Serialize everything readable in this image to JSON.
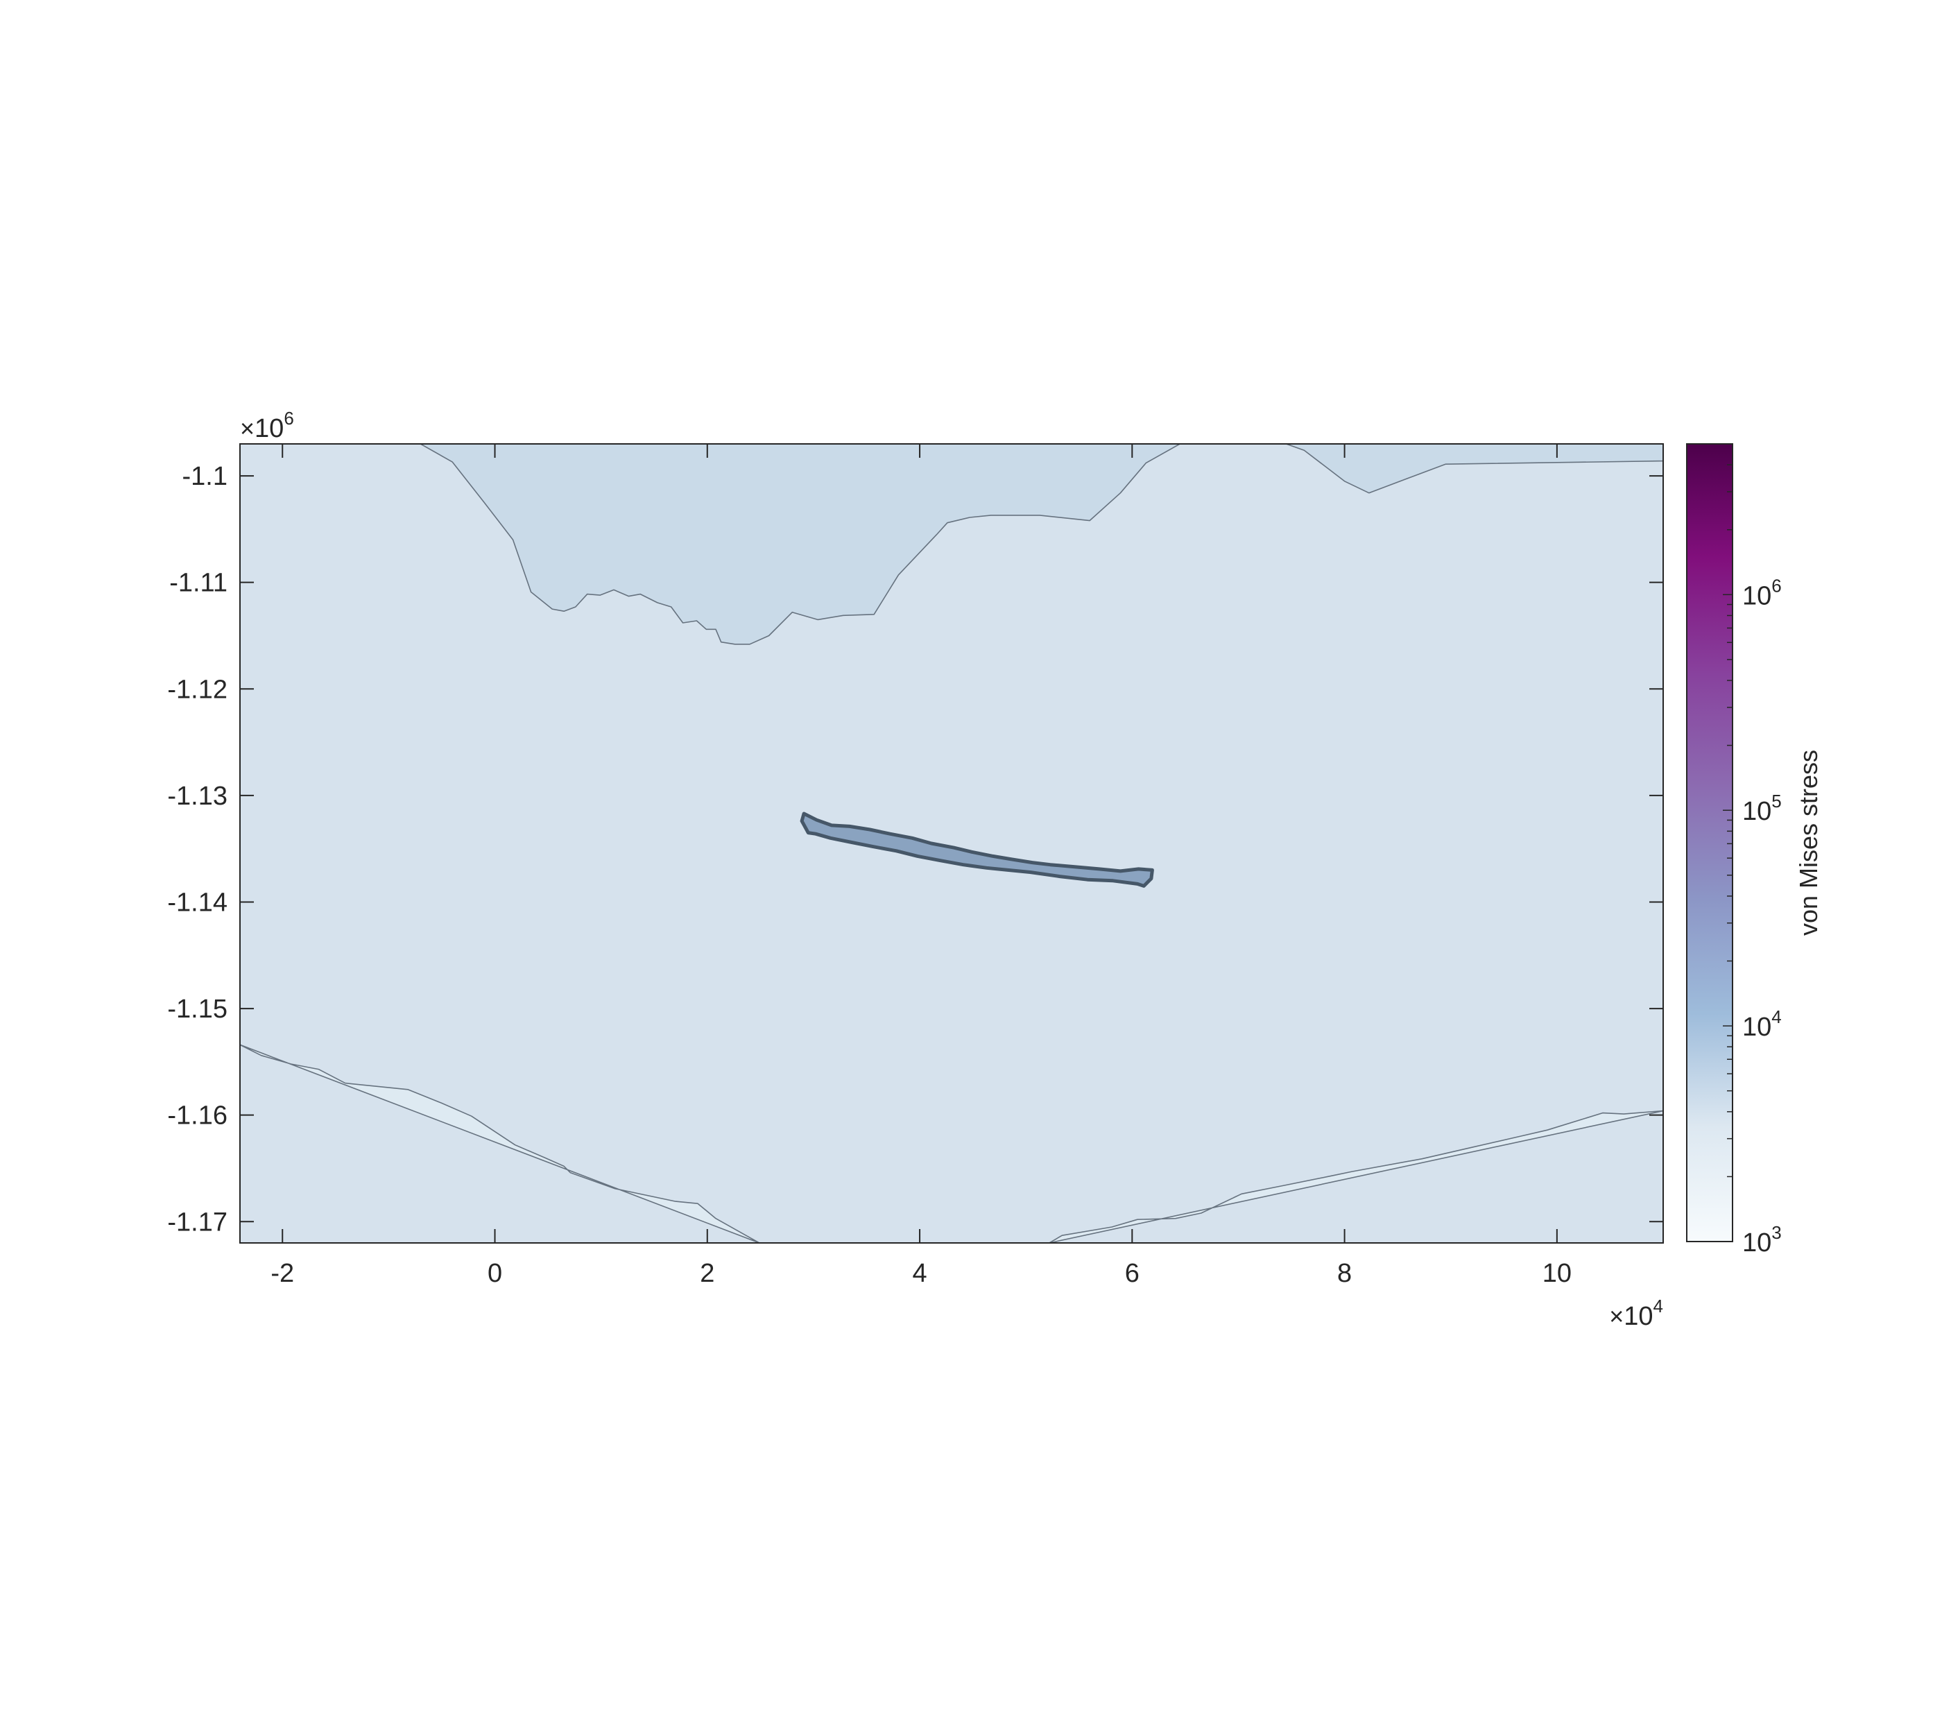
{
  "chart_data": {
    "type": "contour",
    "title": "",
    "xlabel": "",
    "ylabel": "",
    "xlim": [
      -24000,
      110000
    ],
    "ylim": [
      -1172000,
      -1097000
    ],
    "x_ticks": [
      {
        "value": -20000,
        "label": "-2"
      },
      {
        "value": 0,
        "label": "0"
      },
      {
        "value": 20000,
        "label": "2"
      },
      {
        "value": 40000,
        "label": "4"
      },
      {
        "value": 60000,
        "label": "6"
      },
      {
        "value": 80000,
        "label": "8"
      },
      {
        "value": 100000,
        "label": "10"
      }
    ],
    "y_ticks": [
      {
        "value": -1100000,
        "label": "-1.1"
      },
      {
        "value": -1110000,
        "label": "-1.11"
      },
      {
        "value": -1120000,
        "label": "-1.12"
      },
      {
        "value": -1130000,
        "label": "-1.13"
      },
      {
        "value": -1140000,
        "label": "-1.14"
      },
      {
        "value": -1150000,
        "label": "-1.15"
      },
      {
        "value": -1160000,
        "label": "-1.16"
      },
      {
        "value": -1170000,
        "label": "-1.17"
      }
    ],
    "x_multiplier": {
      "times": "×",
      "base": "10",
      "exponent": "4"
    },
    "y_multiplier": {
      "times": "×",
      "base": "10",
      "exponent": "6"
    },
    "colorbar": {
      "label": "von Mises stress",
      "scale": "log",
      "range": [
        1000,
        5000000
      ],
      "ticks": [
        {
          "value": 1000,
          "base": "10",
          "exponent": "3"
        },
        {
          "value": 10000,
          "base": "10",
          "exponent": "4"
        },
        {
          "value": 100000,
          "base": "10",
          "exponent": "5"
        },
        {
          "value": 1000000,
          "base": "10",
          "exponent": "6"
        }
      ],
      "colors": [
        "#f7fbfd",
        "#dde8f1",
        "#9ebcdb",
        "#8c96c6",
        "#8c6bb1",
        "#88419d",
        "#810f7c",
        "#4d004b"
      ]
    },
    "regions": [
      {
        "name": "background level",
        "fill": "#d6e2ed"
      },
      {
        "name": "upper level",
        "fill": "#c9dae8",
        "boundary": [
          [
            -7000,
            -1097000
          ],
          [
            -4000,
            -1098700
          ],
          [
            -1000,
            -1102500
          ],
          [
            1700,
            -1106000
          ],
          [
            3400,
            -1110900
          ],
          [
            5400,
            -1112500
          ],
          [
            6500,
            -1112700
          ],
          [
            7600,
            -1112300
          ],
          [
            8700,
            -1111100
          ],
          [
            9900,
            -1111200
          ],
          [
            11200,
            -1110700
          ],
          [
            12600,
            -1111300
          ],
          [
            13700,
            -1111100
          ],
          [
            15300,
            -1111900
          ],
          [
            16600,
            -1112300
          ],
          [
            17700,
            -1113800
          ],
          [
            19000,
            -1113600
          ],
          [
            19900,
            -1114400
          ],
          [
            20800,
            -1114400
          ],
          [
            21300,
            -1115600
          ],
          [
            22600,
            -1115800
          ],
          [
            24000,
            -1115800
          ],
          [
            25800,
            -1115000
          ],
          [
            28000,
            -1112800
          ],
          [
            30400,
            -1113500
          ],
          [
            32800,
            -1113100
          ],
          [
            35700,
            -1113000
          ],
          [
            38000,
            -1109300
          ],
          [
            41600,
            -1105500
          ],
          [
            42600,
            -1104400
          ],
          [
            44700,
            -1103900
          ],
          [
            46700,
            -1103700
          ],
          [
            51300,
            -1103700
          ],
          [
            56000,
            -1104200
          ],
          [
            58900,
            -1101600
          ],
          [
            61300,
            -1098800
          ],
          [
            64500,
            -1097000
          ]
        ]
      },
      {
        "name": "upper right level",
        "fill": "#c9dae8",
        "boundary": [
          [
            74500,
            -1097000
          ],
          [
            76200,
            -1097600
          ],
          [
            80000,
            -1100500
          ],
          [
            82300,
            -1101600
          ],
          [
            86300,
            -1100100
          ],
          [
            89500,
            -1098900
          ],
          [
            110000,
            -1098600
          ],
          [
            110000,
            -1097000
          ]
        ]
      },
      {
        "name": "lower level",
        "fill": "#deeaf2",
        "boundary": [
          [
            -24000,
            -1153400
          ],
          [
            -22000,
            -1154400
          ],
          [
            -19200,
            -1155200
          ],
          [
            -16600,
            -1155700
          ],
          [
            -14100,
            -1157000
          ],
          [
            -8200,
            -1157600
          ],
          [
            -5200,
            -1158800
          ],
          [
            -2200,
            -1160100
          ],
          [
            1900,
            -1162800
          ],
          [
            4700,
            -1164000
          ],
          [
            6500,
            -1164800
          ],
          [
            7100,
            -1165400
          ],
          [
            11300,
            -1166900
          ],
          [
            17000,
            -1168100
          ],
          [
            19100,
            -1168300
          ],
          [
            20800,
            -1169700
          ],
          [
            24900,
            -1172000
          ]
        ]
      },
      {
        "name": "lower right level",
        "fill": "#deeaf2",
        "boundary": [
          [
            52200,
            -1172000
          ],
          [
            53400,
            -1171300
          ],
          [
            58100,
            -1170500
          ],
          [
            60500,
            -1169800
          ],
          [
            64100,
            -1169700
          ],
          [
            66500,
            -1169200
          ],
          [
            70300,
            -1167400
          ],
          [
            74300,
            -1166600
          ],
          [
            78800,
            -1165700
          ],
          [
            80700,
            -1165300
          ],
          [
            87300,
            -1164100
          ],
          [
            92100,
            -1163000
          ],
          [
            96500,
            -1162000
          ],
          [
            99100,
            -1161400
          ],
          [
            104300,
            -1159800
          ],
          [
            106300,
            -1159900
          ],
          [
            110000,
            -1159600
          ]
        ]
      },
      {
        "name": "high stress band",
        "fill": "#8aa3c0",
        "stroke": "#465768",
        "boundary": [
          [
            29100,
            -1131700
          ],
          [
            30300,
            -1132300
          ],
          [
            31700,
            -1132800
          ],
          [
            33400,
            -1132900
          ],
          [
            35300,
            -1133200
          ],
          [
            37200,
            -1133600
          ],
          [
            39300,
            -1134000
          ],
          [
            41100,
            -1134500
          ],
          [
            43200,
            -1134900
          ],
          [
            44900,
            -1135300
          ],
          [
            46900,
            -1135700
          ],
          [
            48700,
            -1136000
          ],
          [
            50600,
            -1136300
          ],
          [
            52300,
            -1136500
          ],
          [
            54600,
            -1136700
          ],
          [
            56900,
            -1136900
          ],
          [
            58900,
            -1137100
          ],
          [
            60600,
            -1136900
          ],
          [
            61900,
            -1137000
          ],
          [
            61800,
            -1137800
          ],
          [
            61100,
            -1138500
          ],
          [
            60500,
            -1138300
          ],
          [
            58200,
            -1138000
          ],
          [
            55800,
            -1137900
          ],
          [
            53200,
            -1137600
          ],
          [
            50400,
            -1137200
          ],
          [
            48300,
            -1137000
          ],
          [
            46300,
            -1136800
          ],
          [
            44100,
            -1136500
          ],
          [
            41900,
            -1136100
          ],
          [
            39800,
            -1135700
          ],
          [
            37800,
            -1135200
          ],
          [
            35600,
            -1134800
          ],
          [
            33600,
            -1134400
          ],
          [
            31600,
            -1134000
          ],
          [
            30200,
            -1133600
          ],
          [
            29500,
            -1133500
          ],
          [
            28900,
            -1132400
          ]
        ]
      }
    ]
  }
}
